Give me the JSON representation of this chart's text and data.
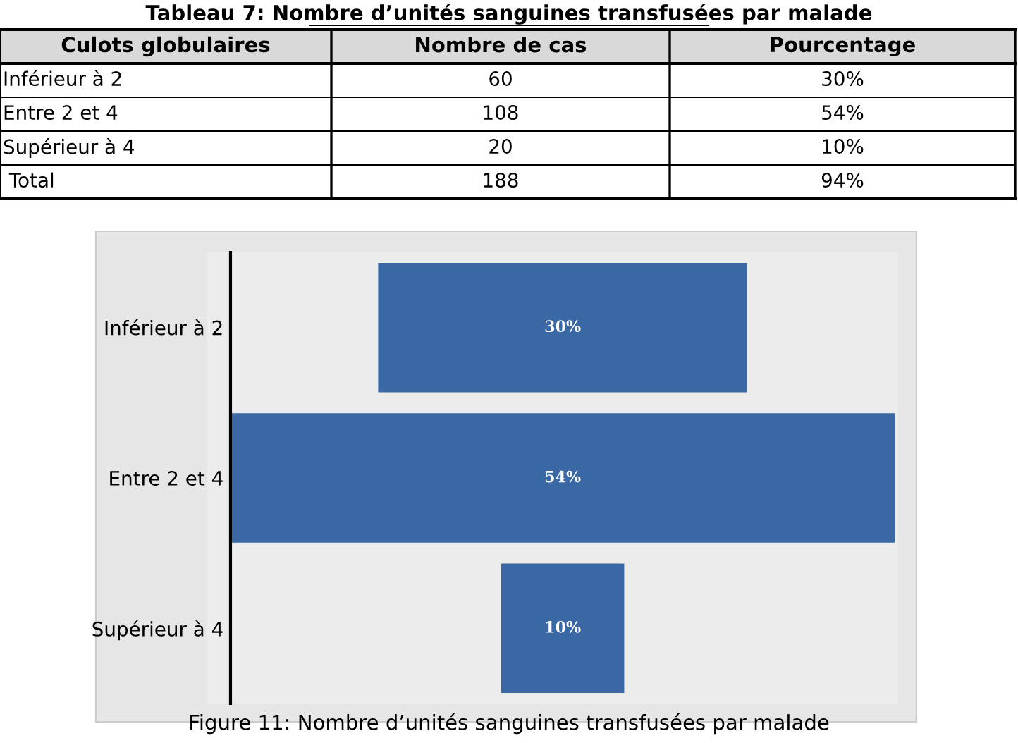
{
  "chart_data": [
    {
      "type": "other",
      "title": "Tableau 7: Nombre d’unités sanguines transfusées par malade",
      "annotations": [
        "Culots globulaires",
        "Nombre de cas",
        "Pourcentage",
        "Inférieur à 2",
        "60",
        "30%",
        "Entre 2 et 4",
        "108",
        "54%",
        "Supérieur à 4",
        "20",
        "10%",
        " Total",
        "188",
        "94%"
      ]
    },
    {
      "type": "other",
      "title": "Figure 11: Nombre d’unités sanguines transfusées par malade",
      "categories": [
        "Inférieur à 2",
        "Entre 2 et 4",
        "Supérieur à 4"
      ],
      "values": [
        30,
        54,
        10
      ],
      "value_labels": [
        "30%",
        "54%",
        "10%"
      ],
      "color": "#3a68a4"
    }
  ]
}
